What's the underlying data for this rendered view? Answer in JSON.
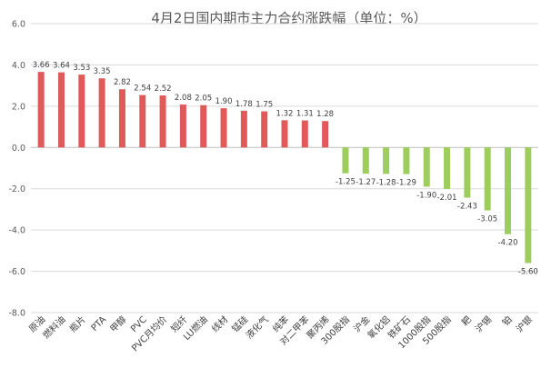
{
  "chart_data": {
    "type": "bar",
    "title": "4月2日国内期市主力合约涨跌幅（单位：%）",
    "xlabel": "",
    "ylabel": "",
    "ylim": [
      -8.0,
      6.0
    ],
    "yticks": [
      "6.0",
      "4.0",
      "2.0",
      "0.0",
      "-2.0",
      "-4.0",
      "-6.0",
      "-8.0"
    ],
    "ytick_values": [
      6,
      4,
      2,
      0,
      -2,
      -4,
      -6,
      -8
    ],
    "grid": true,
    "legend": "none",
    "colors": {
      "positive": "#e05a5a",
      "negative": "#9dcd5a"
    },
    "categories": [
      "原油",
      "燃料油",
      "瓶片",
      "PTA",
      "甲醇",
      "PVC",
      "PVC月均价",
      "短纤",
      "LU燃油",
      "线材",
      "锰硅",
      "液化气",
      "纯苯",
      "对二甲苯",
      "聚丙烯",
      "300股指",
      "沪金",
      "氧化铝",
      "铁矿石",
      "1000股指",
      "500股指",
      "耙",
      "沪锡",
      "铂",
      "沪银"
    ],
    "values": [
      3.66,
      3.64,
      3.53,
      3.35,
      2.82,
      2.54,
      2.52,
      2.08,
      2.05,
      1.9,
      1.78,
      1.75,
      1.32,
      1.31,
      1.28,
      -1.25,
      -1.27,
      -1.28,
      -1.29,
      -1.9,
      -2.01,
      -2.43,
      -3.05,
      -4.2,
      -5.6
    ],
    "value_labels": [
      "3.66",
      "3.64",
      "3.53",
      "3.35",
      "2.82",
      "2.54",
      "2.52",
      "2.08",
      "2.05",
      "1.90",
      "1.78",
      "1.75",
      "1.32",
      "1.31",
      "1.28",
      "-1.25",
      "-1.27",
      "-1.28",
      "-1.29",
      "-1.90",
      "-2.01",
      "-2.43",
      "-3.05",
      "-4.20",
      "-5.60"
    ]
  }
}
